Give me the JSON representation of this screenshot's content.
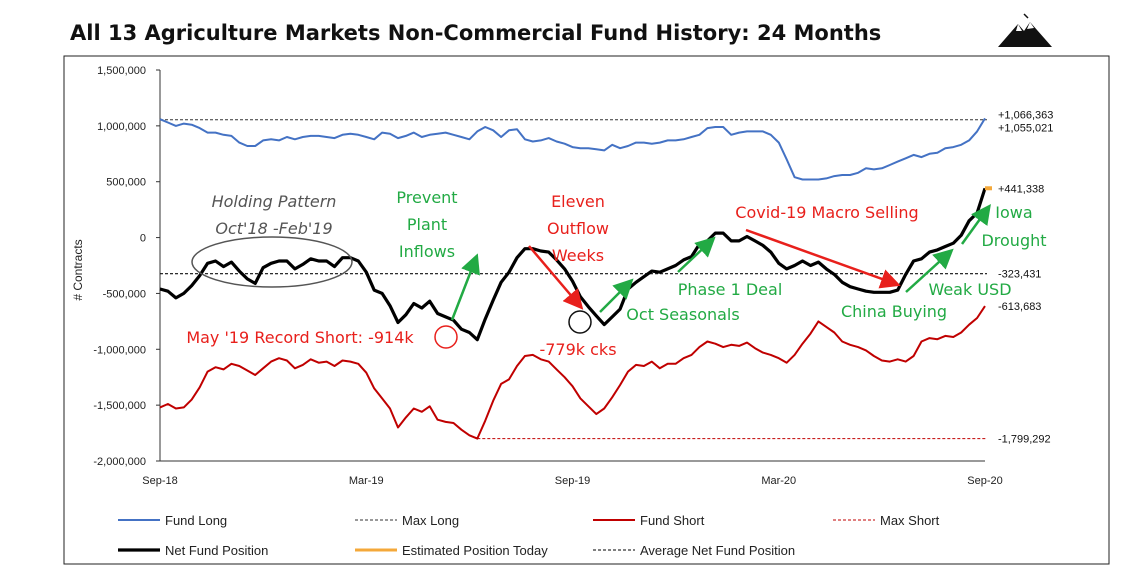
{
  "chart_data": {
    "type": "line",
    "title": "All 13 Agriculture Markets Non-Commercial Fund History: 24 Months",
    "ylabel": "# Contracts",
    "ylim": [
      -2000000,
      1500000
    ],
    "y_ticks": [
      1500000,
      1000000,
      500000,
      0,
      -500000,
      -1000000,
      -1500000,
      -2000000
    ],
    "y_tick_labels": [
      "1,500,000",
      "1,000,000",
      "500,000",
      "0",
      "-500,000",
      "-1,000,000",
      "-1,500,000",
      "-2,000,000"
    ],
    "x_ticks": [
      {
        "week": 0,
        "label": "Sep-18"
      },
      {
        "week": 26,
        "label": "Mar-19"
      },
      {
        "week": 52,
        "label": "Sep-19"
      },
      {
        "week": 78,
        "label": "Mar-20"
      },
      {
        "week": 104,
        "label": "Sep-20"
      }
    ],
    "series": [
      {
        "name": "Fund Long",
        "color": "#4472C4",
        "values": [
          1060000,
          1030000,
          1000000,
          1020000,
          1010000,
          980000,
          940000,
          940000,
          920000,
          910000,
          850000,
          820000,
          820000,
          870000,
          880000,
          870000,
          900000,
          880000,
          900000,
          910000,
          910000,
          900000,
          890000,
          920000,
          930000,
          920000,
          900000,
          880000,
          940000,
          930000,
          890000,
          910000,
          940000,
          900000,
          920000,
          930000,
          940000,
          920000,
          900000,
          880000,
          950000,
          990000,
          960000,
          900000,
          960000,
          970000,
          880000,
          860000,
          870000,
          890000,
          860000,
          840000,
          810000,
          800000,
          800000,
          790000,
          780000,
          830000,
          800000,
          820000,
          850000,
          850000,
          840000,
          850000,
          870000,
          870000,
          880000,
          900000,
          920000,
          980000,
          990000,
          990000,
          920000,
          940000,
          950000,
          950000,
          950000,
          920000,
          850000,
          700000,
          540000,
          520000,
          520000,
          520000,
          530000,
          550000,
          560000,
          560000,
          580000,
          620000,
          610000,
          620000,
          650000,
          680000,
          710000,
          740000,
          720000,
          750000,
          760000,
          800000,
          810000,
          830000,
          870000,
          950000,
          1066363
        ]
      },
      {
        "name": "Fund Short",
        "color": "#C00000",
        "values": [
          -1520000,
          -1490000,
          -1530000,
          -1520000,
          -1450000,
          -1340000,
          -1200000,
          -1160000,
          -1180000,
          -1130000,
          -1150000,
          -1190000,
          -1230000,
          -1170000,
          -1110000,
          -1080000,
          -1100000,
          -1170000,
          -1140000,
          -1090000,
          -1120000,
          -1110000,
          -1150000,
          -1100000,
          -1110000,
          -1130000,
          -1210000,
          -1350000,
          -1440000,
          -1530000,
          -1700000,
          -1610000,
          -1530000,
          -1560000,
          -1510000,
          -1630000,
          -1650000,
          -1660000,
          -1720000,
          -1770000,
          -1799292,
          -1640000,
          -1460000,
          -1310000,
          -1270000,
          -1150000,
          -1060000,
          -1050000,
          -1090000,
          -1110000,
          -1180000,
          -1250000,
          -1330000,
          -1440000,
          -1510000,
          -1580000,
          -1530000,
          -1430000,
          -1320000,
          -1200000,
          -1140000,
          -1150000,
          -1110000,
          -1170000,
          -1130000,
          -1130000,
          -1080000,
          -1050000,
          -980000,
          -930000,
          -950000,
          -980000,
          -960000,
          -970000,
          -940000,
          -990000,
          -1030000,
          -1050000,
          -1080000,
          -1120000,
          -1050000,
          -950000,
          -860000,
          -750000,
          -800000,
          -850000,
          -930000,
          -960000,
          -980000,
          -1010000,
          -1060000,
          -1100000,
          -1110000,
          -1090000,
          -1110000,
          -1060000,
          -930000,
          -900000,
          -910000,
          -880000,
          -890000,
          -850000,
          -780000,
          -720000,
          -613683
        ]
      },
      {
        "name": "Net Fund Position",
        "color": "#000000",
        "values": [
          -460000,
          -480000,
          -540000,
          -500000,
          -430000,
          -340000,
          -230000,
          -210000,
          -260000,
          -220000,
          -300000,
          -370000,
          -410000,
          -270000,
          -230000,
          -210000,
          -210000,
          -280000,
          -240000,
          -190000,
          -210000,
          -210000,
          -260000,
          -180000,
          -180000,
          -210000,
          -310000,
          -470000,
          -500000,
          -610000,
          -760000,
          -690000,
          -590000,
          -630000,
          -570000,
          -680000,
          -710000,
          -740000,
          -820000,
          -850000,
          -914000,
          -730000,
          -560000,
          -400000,
          -310000,
          -180000,
          -100000,
          -100000,
          -120000,
          -130000,
          -200000,
          -280000,
          -390000,
          -530000,
          -620000,
          -700000,
          -779000,
          -710000,
          -640000,
          -460000,
          -400000,
          -350000,
          -300000,
          -310000,
          -280000,
          -250000,
          -200000,
          -170000,
          -60000,
          -30000,
          40000,
          40000,
          -30000,
          -30000,
          10000,
          -30000,
          -70000,
          -130000,
          -230000,
          -280000,
          -250000,
          -210000,
          -250000,
          -220000,
          -280000,
          -330000,
          -400000,
          -440000,
          -460000,
          -480000,
          -490000,
          -490000,
          -490000,
          -470000,
          -330000,
          -210000,
          -190000,
          -130000,
          -110000,
          -80000,
          -50000,
          20000,
          150000,
          220000,
          441338
        ]
      },
      {
        "name": "Max Long",
        "color": "#333333",
        "style": "dashed",
        "value": 1055021
      },
      {
        "name": "Max Short",
        "color": "#C00000",
        "style": "dashed",
        "value": -1799292
      },
      {
        "name": "Average Net Fund Position",
        "color": "#000000",
        "style": "dashed",
        "value": -323431
      },
      {
        "name": "Estimated Position Today",
        "color": "#F4A83A",
        "value": 441338
      }
    ],
    "end_labels": {
      "fund_long": "+1,066,363",
      "max_long": "+1,055,021",
      "estimated": "+441,338",
      "average": "-323,431",
      "fund_short": "-613,683",
      "max_short": "-1,799,292"
    },
    "annotations": {
      "holding_line1": "Holding Pattern",
      "holding_line2": "Oct'18 -Feb'19",
      "prevent_line1": "Prevent",
      "prevent_line2": "Plant",
      "prevent_line3": "Inflows",
      "eleven_line1": "Eleven",
      "eleven_line2": "Outflow",
      "eleven_line3": "Weeks",
      "covid": "Covid-19 Macro Selling",
      "iowa_line1": "Iowa",
      "iowa_line2": "Drought",
      "phase1": "Phase 1 Deal",
      "weak_usd": "Weak USD",
      "oct_seasonals": "Oct Seasonals",
      "china_buying": "China Buying",
      "may_record": "May '19 Record Short: -914k",
      "cks_779": "-779k cks"
    }
  },
  "colors": {
    "green": "#22AA44",
    "red": "#E8201C",
    "gray": "#555555"
  }
}
